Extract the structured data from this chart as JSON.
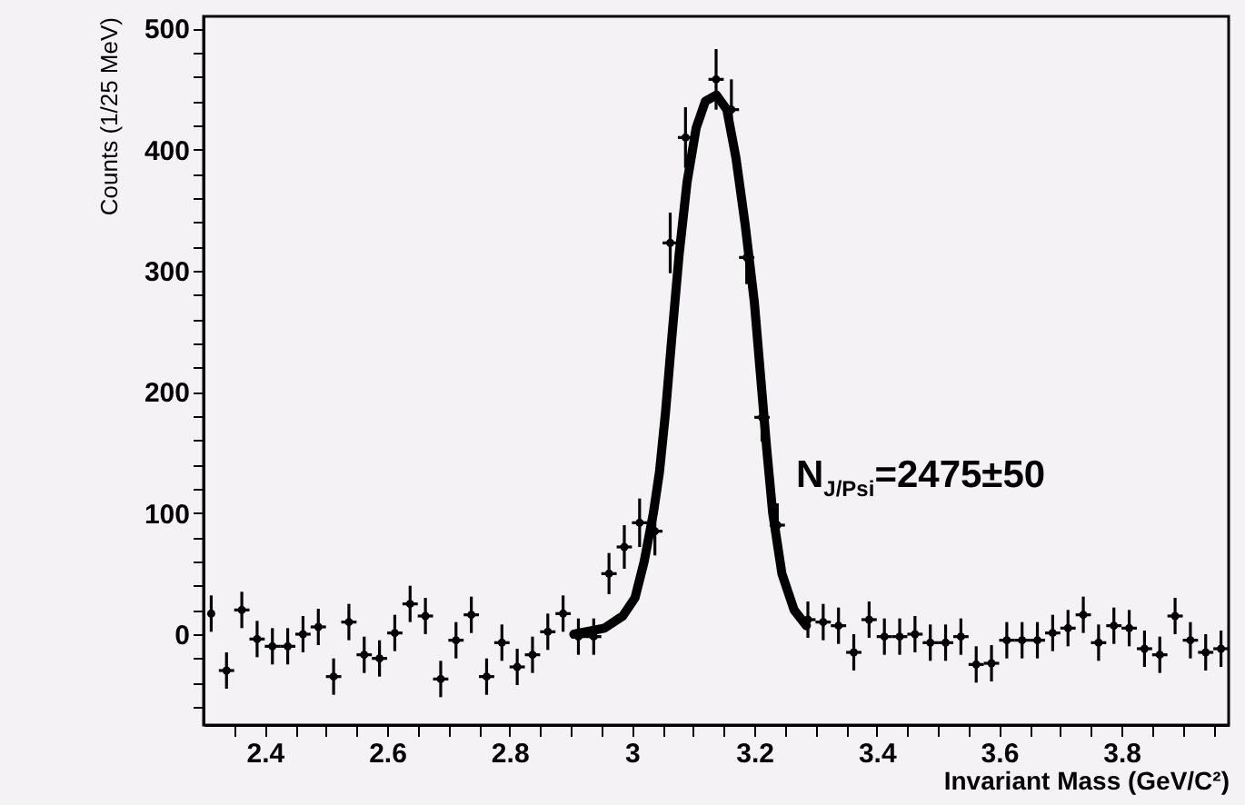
{
  "chart_data": {
    "type": "scatter",
    "xlabel": "Invariant Mass (GeV/C²)",
    "ylabel": "Counts (1/25 MeV)",
    "annotations": [
      "N$_{J/Psi}$=2475±50"
    ],
    "xlim": [
      2.3,
      3.975
    ],
    "ylim": [
      -75,
      510
    ],
    "xticks": [
      {
        "value": 2.35,
        "label": null
      },
      2.4,
      {
        "value": 2.45,
        "label": null
      },
      {
        "value": 2.5,
        "label": null
      },
      {
        "value": 2.55,
        "label": null
      },
      2.6,
      {
        "value": 2.65,
        "label": null
      },
      {
        "value": 2.7,
        "label": null
      },
      {
        "value": 2.75,
        "label": null
      },
      2.8,
      {
        "value": 2.85,
        "label": null
      },
      {
        "value": 2.9,
        "label": null
      },
      {
        "value": 2.95,
        "label": null
      },
      3,
      {
        "value": 3.05,
        "label": null
      },
      {
        "value": 3.1,
        "label": null
      },
      {
        "value": 3.15,
        "label": null
      },
      3.2,
      {
        "value": 3.25,
        "label": null
      },
      {
        "value": 3.3,
        "label": null
      },
      {
        "value": 3.35,
        "label": null
      },
      3.4,
      {
        "value": 3.45,
        "label": null
      },
      {
        "value": 3.5,
        "label": null
      },
      {
        "value": 3.55,
        "label": null
      },
      3.6,
      {
        "value": 3.65,
        "label": null
      },
      {
        "value": 3.7,
        "label": null
      },
      {
        "value": 3.75,
        "label": null
      },
      3.8,
      {
        "value": 3.85,
        "label": null
      },
      {
        "value": 3.9,
        "label": null
      },
      {
        "value": 3.95,
        "label": null
      }
    ],
    "yticks": [
      {
        "value": -60,
        "label": null
      },
      {
        "value": -40,
        "label": null
      },
      {
        "value": -20,
        "label": null
      },
      0,
      {
        "value": 20,
        "label": null
      },
      {
        "value": 40,
        "label": null
      },
      {
        "value": 60,
        "label": null
      },
      {
        "value": 80,
        "label": null
      },
      100,
      {
        "value": 120,
        "label": null
      },
      {
        "value": 140,
        "label": null
      },
      {
        "value": 160,
        "label": null
      },
      {
        "value": 180,
        "label": null
      },
      200,
      {
        "value": 220,
        "label": null
      },
      {
        "value": 240,
        "label": null
      },
      {
        "value": 260,
        "label": null
      },
      {
        "value": 280,
        "label": null
      },
      300,
      {
        "value": 320,
        "label": null
      },
      {
        "value": 340,
        "label": null
      },
      {
        "value": 360,
        "label": null
      },
      {
        "value": 380,
        "label": null
      },
      400,
      {
        "value": 420,
        "label": null
      },
      {
        "value": 440,
        "label": null
      },
      {
        "value": 460,
        "label": null
      },
      {
        "value": 480,
        "label": null
      },
      500
    ],
    "grid": false,
    "series": [
      {
        "type": "scatter",
        "color": "#000000",
        "x": [
          2.3125,
          2.3375,
          2.3625,
          2.3875,
          2.4125,
          2.4375,
          2.4625,
          2.4875,
          2.5125,
          2.5375,
          2.5625,
          2.5875,
          2.6125,
          2.6375,
          2.6625,
          2.6875,
          2.7125,
          2.7375,
          2.7625,
          2.7875,
          2.8125,
          2.8375,
          2.8625,
          2.8875,
          2.9125,
          2.9375,
          2.9625,
          2.9875,
          3.0125,
          3.0375,
          3.0625,
          3.0875,
          3.1125,
          3.1375,
          3.1625,
          3.1875,
          3.2125,
          3.2375,
          3.2625,
          3.2875,
          3.3125,
          3.3375,
          3.3625,
          3.3875,
          3.4125,
          3.4375,
          3.4625,
          3.4875,
          3.5125,
          3.5375,
          3.5625,
          3.5875,
          3.6125,
          3.6375,
          3.6625,
          3.6875,
          3.7125,
          3.7375,
          3.7625,
          3.7875,
          3.8125,
          3.8375,
          3.8625,
          3.8875,
          3.9125,
          3.9375,
          3.9625
        ],
        "values": [
          17,
          -30,
          20,
          -4,
          -10,
          -10,
          0,
          6,
          -35,
          10,
          -17,
          -20,
          1,
          25,
          15,
          -37,
          -5,
          16,
          -35,
          -7,
          -27,
          -17,
          2,
          17,
          -2,
          -2,
          50,
          72,
          92,
          85,
          323,
          410,
          null,
          458,
          433,
          311,
          179,
          90,
          null,
          12,
          10,
          7,
          -15,
          12,
          -2,
          -2,
          0,
          -7,
          -7,
          -2,
          -25,
          -24,
          -5,
          -5,
          -5,
          1,
          5,
          16,
          -7,
          7,
          5,
          -12,
          -17,
          15,
          -5,
          -15,
          -12
        ],
        "errors": [
          15,
          15,
          15,
          15,
          15,
          15,
          15,
          15,
          15,
          15,
          15,
          15,
          15,
          15,
          15,
          15,
          15,
          15,
          15,
          15,
          15,
          15,
          15,
          15,
          15,
          15,
          17,
          18,
          20,
          20,
          25,
          25,
          null,
          25,
          25,
          22,
          20,
          18,
          null,
          15,
          15,
          15,
          15,
          15,
          15,
          15,
          15,
          15,
          15,
          15,
          15,
          15,
          15,
          15,
          15,
          15,
          15,
          15,
          15,
          15,
          15,
          15,
          15,
          15,
          15,
          15,
          15
        ],
        "xerrors": [
          null,
          0.0125,
          0.0125,
          0.0125,
          0.0125,
          0.0125,
          0.0125,
          0.0125,
          0.0125,
          0.0125,
          0.0125,
          0.0125,
          0.0125,
          0.0125,
          0.0125,
          0.0125,
          0.0125,
          0.0125,
          0.0125,
          0.0125,
          0.0125,
          0.0125,
          0.0125,
          0.0125,
          0.0125,
          0.0125,
          0.0125,
          0.0125,
          0.0125,
          0.0125,
          0.0125,
          0.0125,
          null,
          0.0125,
          0.0125,
          0.0125,
          0.0125,
          0.0125,
          null,
          0.0125,
          0.0125,
          0.0125,
          0.0125,
          0.0125,
          0.0125,
          0.0125,
          0.0125,
          0.0125,
          0.0125,
          0.0125,
          0.0125,
          0.0125,
          0.0125,
          0.0125,
          0.0125,
          0.0125,
          0.0125,
          0.0125,
          0.0125,
          0.0125,
          0.0125,
          0.0125,
          0.0125,
          0.0125,
          0.0125,
          0.0125,
          0.0125
        ]
      },
      {
        "type": "line",
        "color": "#000000",
        "line_style": "solid",
        "x": [
          2.905,
          2.955,
          2.985,
          3.005,
          3.02,
          3.035,
          3.045,
          3.055,
          3.065,
          3.077,
          3.09,
          3.105,
          3.12,
          3.138,
          3.155,
          3.17,
          3.185,
          3.2,
          3.21,
          3.22,
          3.23,
          3.245,
          3.265,
          3.285
        ],
        "values": [
          0,
          5,
          15,
          30,
          60,
          100,
          134,
          184,
          244,
          313,
          373,
          418,
          440,
          445,
          433,
          393,
          338,
          274,
          214,
          154,
          100,
          50,
          20,
          7
        ]
      }
    ]
  }
}
